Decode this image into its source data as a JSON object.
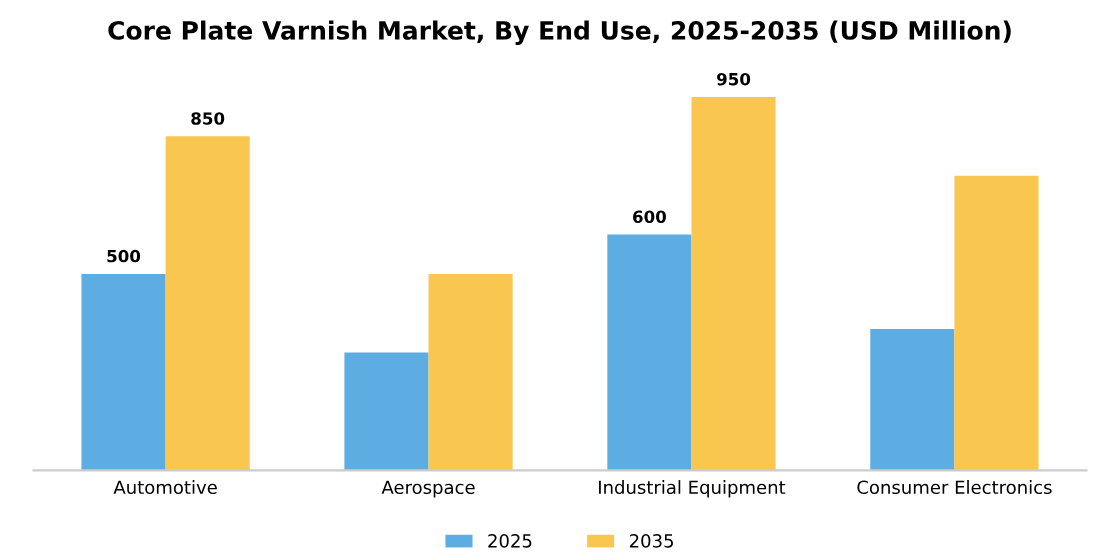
{
  "chart_data": {
    "type": "bar",
    "title": "Core Plate Varnish Market, By End Use, 2025-2035 (USD Million)",
    "categories": [
      "Automotive",
      "Aerospace",
      "Industrial Equipment",
      "Consumer Electronics"
    ],
    "series": [
      {
        "name": "2025",
        "color": "#5dade2",
        "values": [
          500,
          300,
          600,
          360
        ],
        "value_labels": [
          "500",
          null,
          "600",
          null
        ]
      },
      {
        "name": "2035",
        "color": "#f9c74f",
        "values": [
          850,
          500,
          950,
          750
        ],
        "value_labels": [
          "850",
          null,
          "950",
          null
        ]
      }
    ],
    "tick_labels": "x",
    "grid": false,
    "legend": "bottom"
  }
}
